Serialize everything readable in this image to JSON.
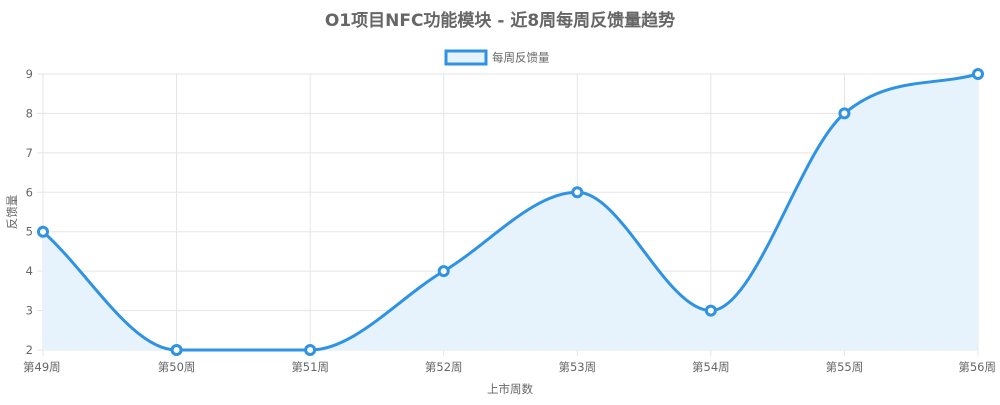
{
  "chart_data": {
    "type": "line",
    "title": "O1项目NFC功能模块 - 近8周每周反馈量趋势",
    "xlabel": "上市周数",
    "ylabel": "反馈量",
    "categories": [
      "第49周",
      "第50周",
      "第51周",
      "第52周",
      "第53周",
      "第54周",
      "第55周",
      "第56周"
    ],
    "series": [
      {
        "name": "每周反馈量",
        "values": [
          5,
          2,
          2,
          4,
          6,
          3,
          8,
          9
        ],
        "color": "#2f92e3",
        "fill": "#e6f3fc"
      }
    ],
    "ylim": [
      2,
      9
    ],
    "yticks": [
      2,
      3,
      4,
      5,
      6,
      7,
      8,
      9
    ],
    "grid": true,
    "legend_position": "top-center",
    "smooth": true,
    "area_fill": true
  }
}
